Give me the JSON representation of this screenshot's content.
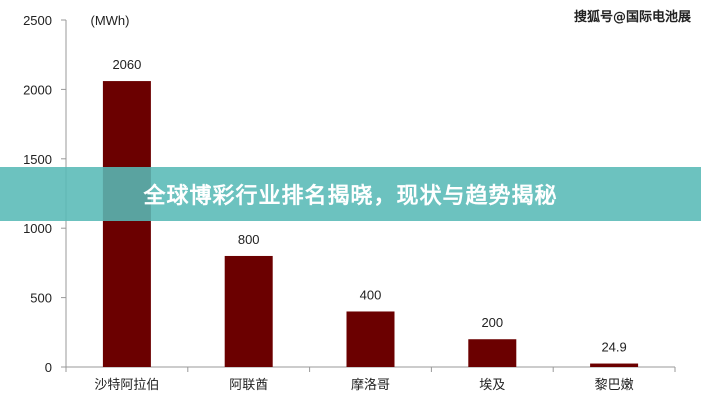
{
  "watermark": "搜狐号@国际电池展",
  "banner": {
    "title": "全球博彩行业排名揭晓，现状与趋势揭秘"
  },
  "chart_data": {
    "type": "bar",
    "ylabel": "(MWh)",
    "categories": [
      "沙特阿拉伯",
      "阿联酋",
      "摩洛哥",
      "埃及",
      "黎巴嫩"
    ],
    "values": [
      2060,
      800,
      400,
      200,
      24.9
    ],
    "value_labels": [
      "2060",
      "800",
      "400",
      "200",
      "24.9"
    ],
    "yticks": [
      "0",
      "500",
      "1000",
      "1500",
      "2000",
      "2500"
    ],
    "ylim": [
      0,
      2500
    ],
    "bar_color": "#6b0000",
    "grid": false
  }
}
